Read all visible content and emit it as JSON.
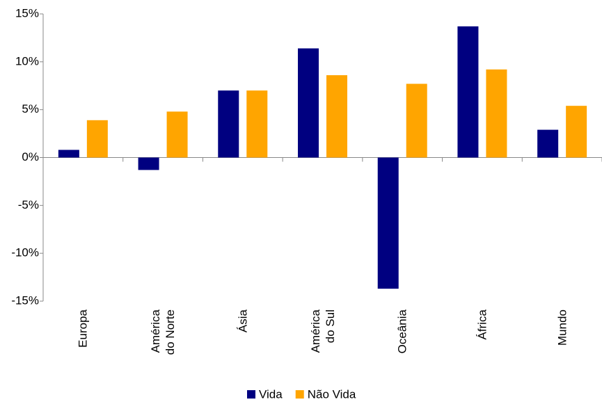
{
  "chart_data": {
    "type": "bar",
    "categories": [
      "Europa",
      "América do Norte",
      "Ásia",
      "América do Sul",
      "Oceânia",
      "África",
      "Mundo"
    ],
    "series": [
      {
        "name": "Vida",
        "color": "#000080",
        "values": [
          0.8,
          -1.3,
          7.0,
          11.4,
          -13.7,
          13.7,
          2.9
        ]
      },
      {
        "name": "Não Vida",
        "color": "#ffa500",
        "values": [
          3.9,
          4.8,
          7.0,
          8.6,
          7.7,
          9.2,
          5.4
        ]
      }
    ],
    "ylim": [
      -15,
      15
    ],
    "yticks": [
      {
        "value": -15,
        "label": "-15%"
      },
      {
        "value": -10,
        "label": "-10%"
      },
      {
        "value": -5,
        "label": "-5%"
      },
      {
        "value": 0,
        "label": "0%"
      },
      {
        "value": 5,
        "label": "5%"
      },
      {
        "value": 10,
        "label": "10%"
      },
      {
        "value": 15,
        "label": "15%"
      }
    ],
    "grid": false,
    "legend": "bottom"
  }
}
